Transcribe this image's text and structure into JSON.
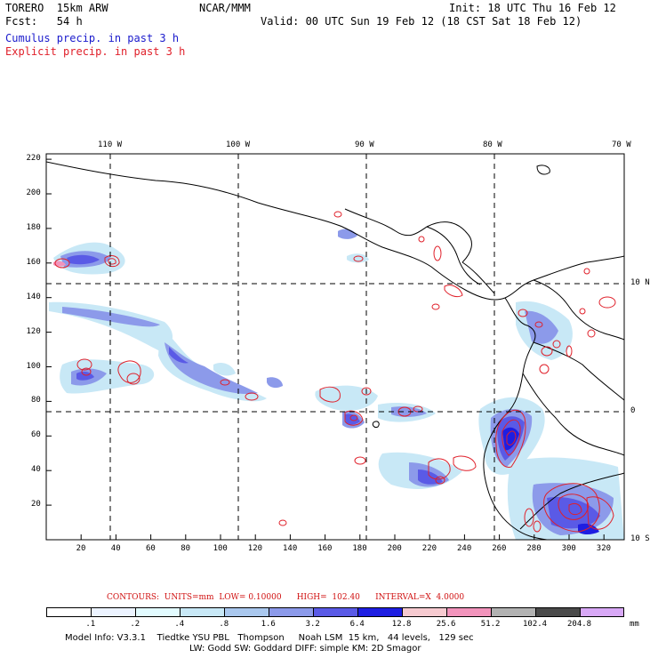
{
  "header": {
    "model_name": "TORERO  15km ARW",
    "center": "NCAR/MMM",
    "init": "Init: 18 UTC Thu 16 Feb 12",
    "fcst": "Fcst:   54 h",
    "valid": "Valid: 00 UTC Sun 19 Feb 12 (18 CST Sat 18 Feb 12)",
    "cumulus": "Cumulus precip. in past 3 h",
    "explicit": "Explicit precip. in past 3 h"
  },
  "colors": {
    "cumulus_text": "#1a1acc",
    "explicit_text": "#e0202a",
    "contour_line": "#e0202a"
  },
  "axes": {
    "top_lon_labels": [
      "110 W",
      "100 W",
      "90 W",
      "80 W",
      "70 W"
    ],
    "right_lat_labels": [
      "10 N",
      "0",
      "10 S"
    ],
    "x_ticks": [
      "20",
      "40",
      "60",
      "80",
      "100",
      "120",
      "140",
      "160",
      "180",
      "200",
      "220",
      "240",
      "260",
      "280",
      "300",
      "320"
    ],
    "y_ticks": [
      "220",
      "200",
      "180",
      "160",
      "140",
      "120",
      "100",
      "80",
      "60",
      "40",
      "20"
    ]
  },
  "contour_info": "CONTOURS:  UNITS=mm  LOW= 0.10000      HIGH=  102.40      INTERVAL=X  4.0000",
  "legend": {
    "labels": [
      ".1",
      ".2",
      ".4",
      ".8",
      "1.6",
      "3.2",
      "6.4",
      "12.8",
      "25.6",
      "51.2",
      "102.4",
      "204.8"
    ],
    "unit": "mm",
    "colors": [
      "#ffffff",
      "#ecf3ff",
      "#e2fbff",
      "#c8e8f6",
      "#aac8ee",
      "#8c9aea",
      "#5a5ae6",
      "#1e1ee2",
      "#f6cad0",
      "#f294bc",
      "#b2b2b2",
      "#4a4a4a",
      "#d8a8f6"
    ]
  },
  "footer": {
    "line1": "Model Info: V3.3.1    Tiedtke YSU PBL   Thompson     Noah LSM  15 km,   44 levels,   129 sec",
    "line2": "LW: Godd SW: Goddard DIFF: simple KM: 2D Smagor"
  }
}
